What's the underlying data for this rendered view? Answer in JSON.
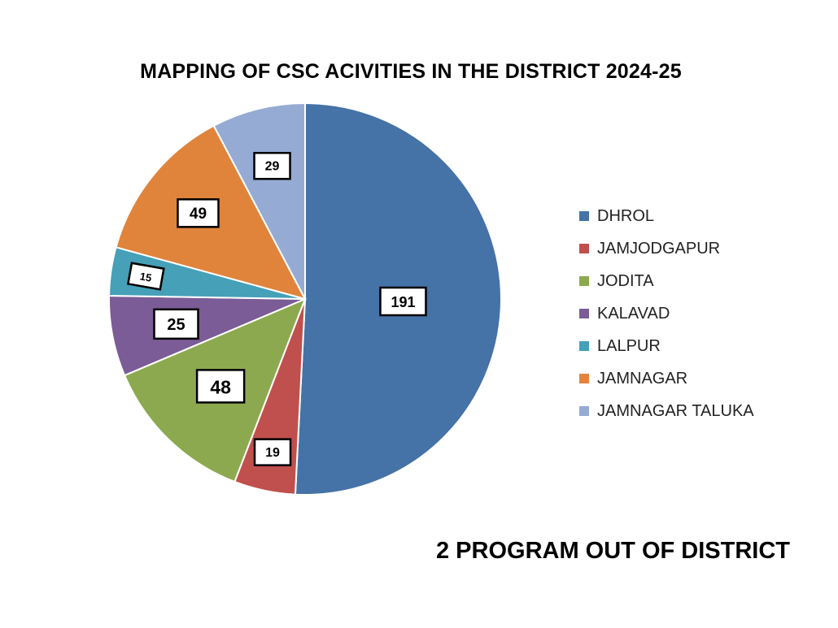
{
  "chart_data": {
    "type": "pie",
    "title": "MAPPING OF CSC ACIVITIES IN THE DISTRICT 2024-25",
    "categories": [
      "DHROL",
      "JAMJODGAPUR",
      "JODITA",
      "KALAVAD",
      "LALPUR",
      "JAMNAGAR",
      "JAMNAGAR TALUKA"
    ],
    "values": [
      191,
      19,
      48,
      25,
      15,
      49,
      29
    ],
    "colors": [
      "#4572A7",
      "#C0504D",
      "#8DA94F",
      "#7B5C96",
      "#45A0B8",
      "#E0843C",
      "#95ABD4"
    ],
    "legend_position": "right",
    "annotation": "2 PROGRAM OUT OF DISTRICT"
  }
}
